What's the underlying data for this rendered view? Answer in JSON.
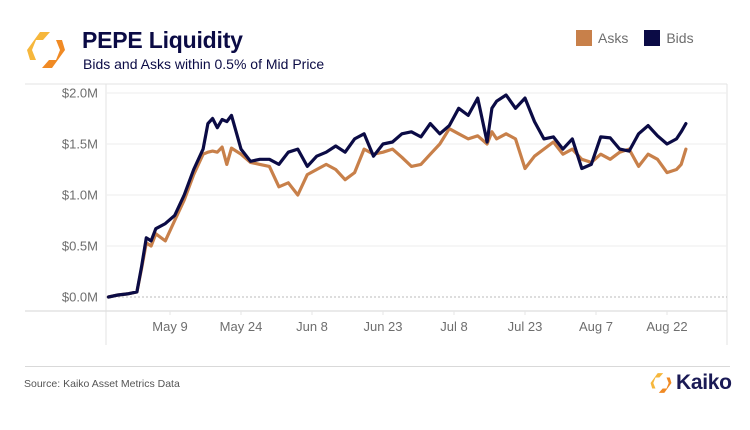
{
  "header": {
    "title": "PEPE Liquidity",
    "subtitle": "Bids and Asks within 0.5% of Mid Price",
    "logo_icon": "kaiko-hexagon-logo-icon"
  },
  "legend": {
    "items": [
      {
        "label": "Asks",
        "color": "#c8804a"
      },
      {
        "label": "Bids",
        "color": "#0b0b45"
      }
    ]
  },
  "footer": {
    "source": "Source: Kaiko Asset Metrics Data",
    "brand": "Kaiko"
  },
  "colors": {
    "asks": "#c8804a",
    "bids": "#0b0b45",
    "logo_orange": "#f08a24",
    "logo_yellow": "#f6b73c",
    "grid": "#eeeeee",
    "axis_text": "#6e6e6e"
  },
  "chart_data": {
    "type": "line",
    "title": "PEPE Liquidity",
    "subtitle": "Bids and Asks within 0.5% of Mid Price",
    "xlabel": "",
    "ylabel": "",
    "unit": "USD millions",
    "ylim": [
      0,
      2.0
    ],
    "yticks": [
      0.0,
      0.5,
      1.0,
      1.5,
      2.0
    ],
    "ytick_labels": [
      "$0.0M",
      "$0.5M",
      "$1.0M",
      "$1.5M",
      "$2.0M"
    ],
    "xticks": [
      "May 9",
      "May 24",
      "Jun 8",
      "Jun 23",
      "Jul 8",
      "Jul 23",
      "Aug 7",
      "Aug 22"
    ],
    "xtick_day_offsets": [
      0,
      15,
      30,
      45,
      60,
      75,
      90,
      105
    ],
    "x_day_range": [
      -14,
      110
    ],
    "grid": true,
    "zero_line": "dotted",
    "legend_position": "top-right",
    "x_day_offsets": [
      -13,
      -11,
      -9,
      -7,
      -6,
      -5,
      -4,
      -3,
      -1,
      1,
      3,
      5,
      7,
      8,
      9,
      10,
      11,
      12,
      13,
      15,
      17,
      19,
      21,
      23,
      25,
      27,
      29,
      31,
      33,
      35,
      37,
      39,
      41,
      43,
      45,
      47,
      49,
      51,
      53,
      55,
      57,
      59,
      61,
      63,
      65,
      67,
      68,
      69,
      71,
      73,
      75,
      77,
      79,
      81,
      83,
      85,
      87,
      89,
      91,
      93,
      95,
      97,
      99,
      101,
      103,
      105,
      107,
      108,
      109
    ],
    "series": [
      {
        "name": "Bids",
        "values": [
          0.0,
          0.02,
          0.03,
          0.05,
          0.3,
          0.58,
          0.55,
          0.67,
          0.72,
          0.8,
          1.0,
          1.25,
          1.45,
          1.7,
          1.75,
          1.66,
          1.74,
          1.72,
          1.78,
          1.45,
          1.33,
          1.35,
          1.35,
          1.3,
          1.42,
          1.45,
          1.28,
          1.38,
          1.42,
          1.48,
          1.42,
          1.55,
          1.6,
          1.38,
          1.5,
          1.52,
          1.6,
          1.62,
          1.57,
          1.7,
          1.6,
          1.68,
          1.85,
          1.78,
          1.95,
          1.52,
          1.85,
          1.92,
          1.98,
          1.85,
          1.95,
          1.72,
          1.55,
          1.57,
          1.45,
          1.55,
          1.26,
          1.3,
          1.57,
          1.56,
          1.45,
          1.43,
          1.6,
          1.68,
          1.58,
          1.5,
          1.55,
          1.62,
          1.7
        ]
      },
      {
        "name": "Asks",
        "values": [
          0.0,
          0.02,
          0.03,
          0.05,
          0.28,
          0.53,
          0.5,
          0.62,
          0.55,
          0.75,
          0.95,
          1.2,
          1.4,
          1.42,
          1.43,
          1.42,
          1.47,
          1.3,
          1.46,
          1.4,
          1.32,
          1.3,
          1.28,
          1.08,
          1.12,
          1.0,
          1.2,
          1.25,
          1.3,
          1.25,
          1.15,
          1.22,
          1.45,
          1.4,
          1.42,
          1.45,
          1.37,
          1.28,
          1.3,
          1.4,
          1.5,
          1.65,
          1.6,
          1.55,
          1.58,
          1.5,
          1.62,
          1.55,
          1.6,
          1.55,
          1.26,
          1.38,
          1.45,
          1.52,
          1.4,
          1.45,
          1.35,
          1.32,
          1.4,
          1.35,
          1.42,
          1.45,
          1.28,
          1.4,
          1.35,
          1.22,
          1.25,
          1.3,
          1.45
        ]
      }
    ]
  }
}
